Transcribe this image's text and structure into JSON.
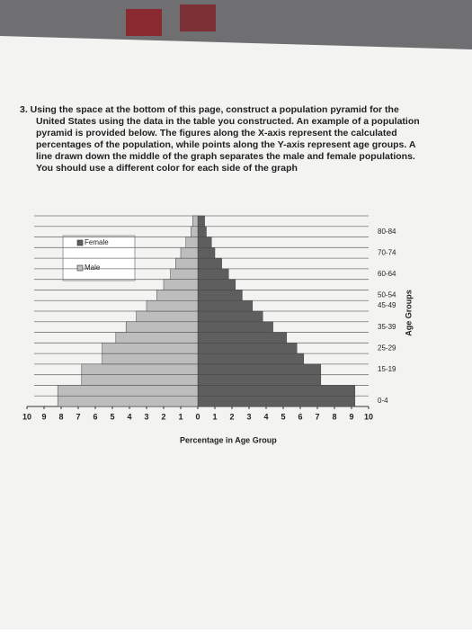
{
  "instructions": [
    "3. Using the space at the bottom of this page, construct a population pyramid for the",
    "United States using the data in the table you constructed. An example of a population",
    "pyramid is provided below. The figures along the X-axis represent the calculated",
    "percentages of the population, while points along the Y-axis represent age groups. A",
    "line drawn down the middle of the graph separates the male and female populations.",
    "You should use a different color for each side of the graph"
  ],
  "chart_data": {
    "type": "pyramid",
    "x_label": "Percentage in Age Group",
    "y_label": "Age Groups",
    "categories": [
      "0-4",
      null,
      null,
      "15-19",
      null,
      "25-29",
      null,
      "35-39",
      null,
      "45-49",
      "50-54",
      null,
      "60-64",
      null,
      "70-74",
      null,
      "80-84",
      null
    ],
    "series": [
      {
        "name": "Female",
        "color": "#5e5e5e",
        "side": "right",
        "values": [
          9.2,
          9.2,
          7.2,
          7.2,
          6.2,
          5.8,
          5.2,
          4.4,
          3.8,
          3.2,
          2.6,
          2.2,
          1.8,
          1.4,
          1.0,
          0.8,
          0.5,
          0.4
        ]
      },
      {
        "name": "Male",
        "color": "#bdbdbd",
        "side": "left",
        "values": [
          8.2,
          8.2,
          6.8,
          6.8,
          5.6,
          5.6,
          4.8,
          4.2,
          3.6,
          3.0,
          2.4,
          2.0,
          1.6,
          1.3,
          1.0,
          0.7,
          0.4,
          0.3
        ]
      }
    ],
    "xlim": [
      -10,
      10
    ],
    "xticks": [
      {
        "value": -10,
        "label": "10"
      },
      {
        "value": -9,
        "label": "9"
      },
      {
        "value": -8,
        "label": "8"
      },
      {
        "value": -7,
        "label": "7"
      },
      {
        "value": -6,
        "label": "6"
      },
      {
        "value": -5,
        "label": "5"
      },
      {
        "value": -4,
        "label": "4"
      },
      {
        "value": -3,
        "label": "3"
      },
      {
        "value": -2,
        "label": "2"
      },
      {
        "value": -1,
        "label": "1"
      },
      0,
      1,
      2,
      3,
      4,
      5,
      6,
      7,
      8,
      9,
      10
    ]
  }
}
